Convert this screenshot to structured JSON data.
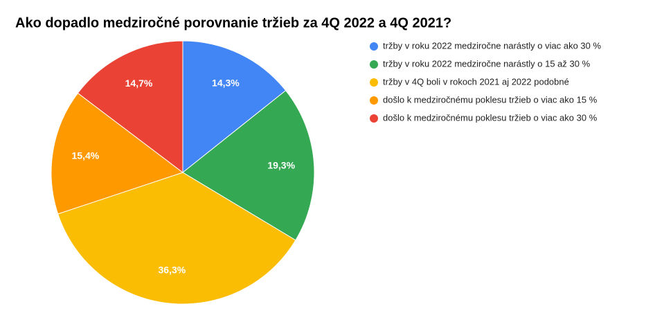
{
  "chart_data": {
    "type": "pie",
    "title": "Ako dopadlo medziročné porovnanie tržieb za 4Q 2022 a 4Q 2021?",
    "categories": [
      "tržby v roku 2022 medziročne narástly o viac ako 30 %",
      "tržby v roku 2022 medziročne narástly o 15 až 30 %",
      "tržby v 4Q boli v rokoch 2021 aj 2022 podobné",
      "došlo k medziročnému poklesu tržieb o viac ako 15 %",
      "došlo k medziročnému poklesu tržieb o viac ako 30 %"
    ],
    "values": [
      14.3,
      19.3,
      36.3,
      15.4,
      14.7
    ],
    "value_labels": [
      "14,3%",
      "19,3%",
      "36,3%",
      "15,4%",
      "14,7%"
    ],
    "colors": [
      "#4285f4",
      "#34a853",
      "#fbbc04",
      "#ff9900",
      "#ea4335"
    ],
    "legend": "right"
  }
}
